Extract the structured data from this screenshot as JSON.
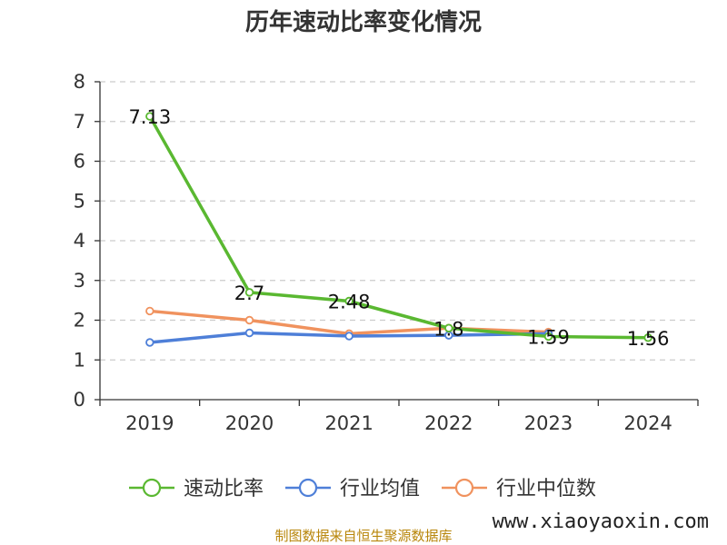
{
  "chart_data": {
    "type": "line",
    "title": "历年速动比率变化情况",
    "categories": [
      "2019",
      "2020",
      "2021",
      "2022",
      "2023",
      "2024"
    ],
    "ylim": [
      0,
      8
    ],
    "yticks": [
      0,
      1,
      2,
      3,
      4,
      5,
      6,
      7,
      8
    ],
    "grid": true,
    "legend_position": "bottom",
    "series": [
      {
        "name": "速动比率",
        "color": "#5ab831",
        "values": [
          7.13,
          2.7,
          2.48,
          1.8,
          1.59,
          1.56
        ],
        "labels": [
          "7.13",
          "2.7",
          "2.48",
          "1.8",
          "1.59",
          "1.56"
        ]
      },
      {
        "name": "行业均值",
        "color": "#4e7fd8",
        "values": [
          1.44,
          1.68,
          1.6,
          1.62,
          1.66,
          null
        ]
      },
      {
        "name": "行业中位数",
        "color": "#f0925e",
        "values": [
          2.23,
          2.0,
          1.66,
          1.8,
          1.7,
          null
        ]
      }
    ]
  },
  "footer": {
    "source": "制图数据来自恒生聚源数据库",
    "watermark": "www.xiaoyaoxin.com"
  }
}
